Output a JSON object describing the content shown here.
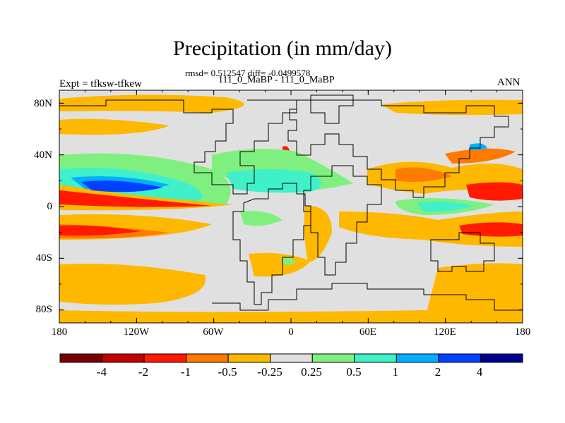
{
  "title": "Precipitation (in mm/day)",
  "stats": "rmsd= 0.512547 diff= -0.0499578",
  "subtitle": "111_0_MaBP - 111_0_MaBP",
  "left_label": "Expt = tfksw-tfkew",
  "right_label": "ANN",
  "lat_labels": [
    "80N",
    "40N",
    "0",
    "40S",
    "80S"
  ],
  "lon_labels": [
    "180",
    "120W",
    "60W",
    "0",
    "60E",
    "120E",
    "180"
  ],
  "colorbar": {
    "labels": [
      "-4",
      "-2",
      "-1",
      "-0.5",
      "-0.25",
      "0.25",
      "0.5",
      "1",
      "2",
      "4"
    ],
    "colors": [
      "#7a0000",
      "#c40000",
      "#ff1a00",
      "#ff7a00",
      "#ffb800",
      "#e0e0e0",
      "#7ff07f",
      "#3ff0c8",
      "#00b0ff",
      "#0040ff",
      "#000090"
    ]
  },
  "map_colors": {
    "ocean_bg": "#e0e0e0",
    "orange": "#ffb800",
    "dark_orange": "#ff7a00",
    "red": "#ff1a00",
    "light_green": "#7ff07f",
    "cyan": "#3ff0c8",
    "sky": "#00b0ff",
    "blue": "#0040ff",
    "coast": "#000000"
  }
}
